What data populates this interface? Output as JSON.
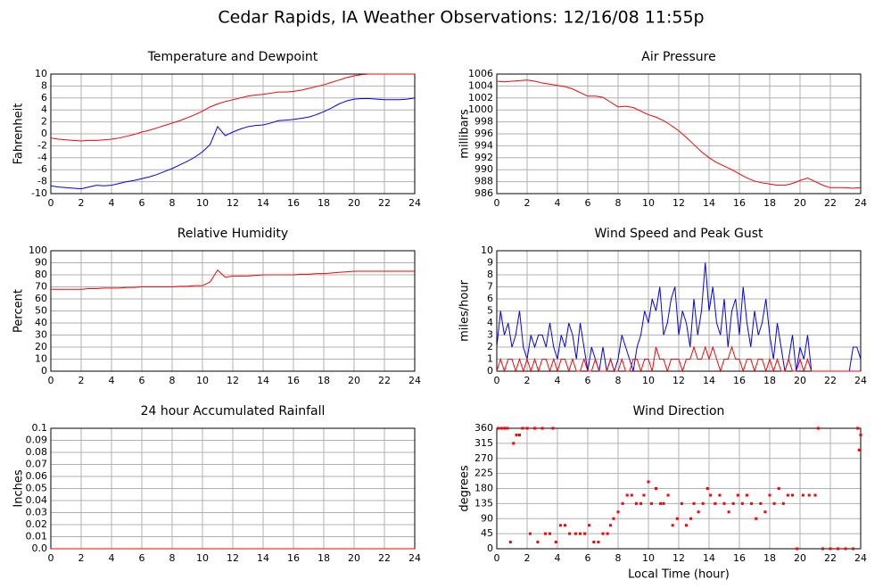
{
  "title": "Cedar Rapids, IA Weather Observations: 12/16/08 11:55p",
  "chart_data": [
    {
      "type": "line",
      "title": "Temperature and Dewpoint",
      "y_label": "Fahrenheit",
      "x": [
        0,
        0.5,
        1,
        1.5,
        2,
        2.5,
        3,
        3.5,
        4,
        4.5,
        5,
        5.5,
        6,
        6.5,
        7,
        7.5,
        8,
        8.5,
        9,
        9.5,
        10,
        10.5,
        11,
        11.5,
        12,
        12.5,
        13,
        13.5,
        14,
        14.5,
        15,
        15.5,
        16,
        16.5,
        17,
        17.5,
        18,
        18.5,
        19,
        19.5,
        20,
        20.5,
        21,
        21.5,
        22,
        22.5,
        23,
        23.5,
        24
      ],
      "series": [
        {
          "color": "#ff0000",
          "values": [
            -0.7,
            -0.9,
            -1.0,
            -1.1,
            -1.2,
            -1.1,
            -1.1,
            -1.0,
            -0.9,
            -0.7,
            -0.4,
            -0.1,
            0.3,
            0.6,
            1.0,
            1.4,
            1.8,
            2.2,
            2.7,
            3.2,
            3.8,
            4.5,
            5.0,
            5.4,
            5.7,
            6.0,
            6.3,
            6.5,
            6.6,
            6.8,
            7.0,
            7.0,
            7.1,
            7.3,
            7.6,
            7.9,
            8.2,
            8.6,
            9.0,
            9.4,
            9.7,
            9.9,
            10,
            10,
            10,
            10,
            10,
            10,
            10
          ]
        },
        {
          "color": "#0000ff",
          "values": [
            -8.7,
            -8.9,
            -9.0,
            -9.1,
            -9.2,
            -8.9,
            -8.6,
            -8.7,
            -8.6,
            -8.3,
            -8.0,
            -7.8,
            -7.5,
            -7.2,
            -6.8,
            -6.3,
            -5.8,
            -5.2,
            -4.6,
            -3.9,
            -3.0,
            -1.8,
            1.2,
            -0.3,
            0.3,
            0.8,
            1.2,
            1.4,
            1.5,
            1.8,
            2.2,
            2.3,
            2.4,
            2.6,
            2.8,
            3.2,
            3.7,
            4.3,
            5.0,
            5.5,
            5.8,
            5.9,
            5.9,
            5.8,
            5.7,
            5.7,
            5.7,
            5.8,
            6.0
          ]
        }
      ],
      "xlim": [
        0,
        24
      ],
      "xticks": [
        0,
        2,
        4,
        6,
        8,
        10,
        12,
        14,
        16,
        18,
        20,
        22,
        24
      ],
      "ylim": [
        -10,
        10
      ],
      "yticks": [
        -10,
        -8,
        -6,
        -4,
        -2,
        0,
        2,
        4,
        6,
        8,
        10
      ],
      "grid": true
    },
    {
      "type": "line",
      "title": "Air Pressure",
      "y_label": "millibars",
      "x": [
        0,
        0.5,
        1,
        1.5,
        2,
        2.5,
        3,
        3.5,
        4,
        4.5,
        5,
        5.5,
        6,
        6.5,
        7,
        7.5,
        8,
        8.5,
        9,
        9.5,
        10,
        10.5,
        11,
        11.5,
        12,
        12.5,
        13,
        13.5,
        14,
        14.5,
        15,
        15.5,
        16,
        16.5,
        17,
        17.5,
        18,
        18.5,
        19,
        19.5,
        20,
        20.5,
        21,
        21.5,
        22,
        22.5,
        23,
        23.5,
        24
      ],
      "series": [
        {
          "color": "#ff0000",
          "values": [
            1004.8,
            1004.7,
            1004.8,
            1004.9,
            1005.0,
            1004.8,
            1004.5,
            1004.3,
            1004.1,
            1003.9,
            1003.5,
            1002.9,
            1002.3,
            1002.3,
            1002.1,
            1001.3,
            1000.5,
            1000.6,
            1000.4,
            999.8,
            999.2,
            998.8,
            998.2,
            997.4,
            996.5,
            995.4,
            994.2,
            993.0,
            992.0,
            991.2,
            990.6,
            990.0,
            989.3,
            988.6,
            988.1,
            987.8,
            987.6,
            987.4,
            987.4,
            987.7,
            988.2,
            988.6,
            988.0,
            987.4,
            987.0,
            987.0,
            987.0,
            986.9,
            987.0
          ]
        }
      ],
      "xlim": [
        0,
        24
      ],
      "xticks": [
        0,
        2,
        4,
        6,
        8,
        10,
        12,
        14,
        16,
        18,
        20,
        22,
        24
      ],
      "ylim": [
        986,
        1006
      ],
      "yticks": [
        986,
        988,
        990,
        992,
        994,
        996,
        998,
        1000,
        1002,
        1004,
        1006
      ],
      "grid": true
    },
    {
      "type": "line",
      "title": "Relative Humidity",
      "y_label": "Percent",
      "x": [
        0,
        0.5,
        1,
        1.5,
        2,
        2.5,
        3,
        3.5,
        4,
        4.5,
        5,
        5.5,
        6,
        6.5,
        7,
        7.5,
        8,
        8.5,
        9,
        9.5,
        10,
        10.5,
        11,
        11.5,
        12,
        12.5,
        13,
        13.5,
        14,
        14.5,
        15,
        15.5,
        16,
        16.5,
        17,
        17.5,
        18,
        18.5,
        19,
        19.5,
        20,
        20.5,
        21,
        21.5,
        22,
        22.5,
        23,
        23.5,
        24
      ],
      "series": [
        {
          "color": "#ff0000",
          "values": [
            68,
            68,
            68,
            68,
            68,
            68.5,
            68.5,
            69,
            69,
            69,
            69.5,
            69.5,
            70,
            70,
            70,
            70,
            70,
            70.5,
            70.5,
            71,
            71,
            74,
            84,
            78,
            79,
            79,
            79,
            79.5,
            80,
            80,
            80,
            80,
            80,
            80.5,
            80.5,
            81,
            81,
            81.5,
            82,
            82.5,
            83,
            83,
            83,
            83,
            83,
            83,
            83,
            83,
            83
          ]
        }
      ],
      "xlim": [
        0,
        24
      ],
      "xticks": [
        0,
        2,
        4,
        6,
        8,
        10,
        12,
        14,
        16,
        18,
        20,
        22,
        24
      ],
      "ylim": [
        0,
        100
      ],
      "yticks": [
        0,
        10,
        20,
        30,
        40,
        50,
        60,
        70,
        80,
        90,
        100
      ],
      "grid": true
    },
    {
      "type": "line",
      "title": "Wind Speed and Peak Gust",
      "y_label": "miles/hour",
      "x": [
        0,
        0.25,
        0.5,
        0.75,
        1,
        1.25,
        1.5,
        1.75,
        2,
        2.25,
        2.5,
        2.75,
        3,
        3.25,
        3.5,
        3.75,
        4,
        4.25,
        4.5,
        4.75,
        5,
        5.25,
        5.5,
        5.75,
        6,
        6.25,
        6.5,
        6.75,
        7,
        7.25,
        7.5,
        7.75,
        8,
        8.25,
        8.5,
        8.75,
        9,
        9.25,
        9.5,
        9.75,
        10,
        10.25,
        10.5,
        10.75,
        11,
        11.25,
        11.5,
        11.75,
        12,
        12.25,
        12.5,
        12.75,
        13,
        13.25,
        13.5,
        13.75,
        14,
        14.25,
        14.5,
        14.75,
        15,
        15.25,
        15.5,
        15.75,
        16,
        16.25,
        16.5,
        16.75,
        17,
        17.25,
        17.5,
        17.75,
        18,
        18.25,
        18.5,
        18.75,
        19,
        19.25,
        19.5,
        19.75,
        20,
        20.25,
        20.5,
        20.75,
        21,
        21.25,
        21.5,
        21.75,
        22,
        22.25,
        22.5,
        22.75,
        23,
        23.25,
        23.5,
        23.75,
        24
      ],
      "series": [
        {
          "color": "#0000ff",
          "values": [
            2,
            5,
            3,
            4,
            2,
            3,
            5,
            2,
            1,
            3,
            2,
            3,
            3,
            2,
            4,
            2,
            1,
            3,
            2,
            4,
            3,
            1,
            4,
            2,
            0,
            2,
            1,
            0,
            2,
            0,
            1,
            0,
            1,
            3,
            2,
            1,
            0,
            2,
            3,
            5,
            4,
            6,
            5,
            7,
            3,
            4,
            6,
            7,
            3,
            5,
            4,
            2,
            6,
            3,
            5,
            9,
            5,
            7,
            4,
            3,
            6,
            2,
            5,
            6,
            3,
            7,
            4,
            2,
            5,
            3,
            4,
            6,
            3,
            1,
            4,
            2,
            0,
            1,
            3,
            0,
            2,
            1,
            3,
            0,
            0,
            0,
            0,
            0,
            0,
            0,
            0,
            0,
            0,
            0,
            2,
            2,
            1
          ]
        },
        {
          "color": "#ff0000",
          "values": [
            0,
            1,
            0,
            1,
            1,
            0,
            1,
            0,
            1,
            0,
            1,
            0,
            1,
            1,
            0,
            1,
            0,
            1,
            1,
            0,
            1,
            0,
            0,
            1,
            0,
            0,
            1,
            0,
            0,
            0,
            1,
            0,
            0,
            1,
            0,
            0,
            1,
            1,
            0,
            1,
            1,
            0,
            2,
            1,
            1,
            0,
            1,
            1,
            1,
            0,
            1,
            1,
            2,
            1,
            1,
            2,
            1,
            2,
            1,
            0,
            1,
            1,
            2,
            1,
            1,
            0,
            1,
            1,
            0,
            1,
            1,
            0,
            1,
            0,
            1,
            0,
            0,
            1,
            0,
            0,
            1,
            0,
            1,
            0,
            0,
            0,
            0,
            0,
            0,
            0,
            0,
            0,
            0,
            0,
            0,
            0,
            0
          ]
        }
      ],
      "xlim": [
        0,
        24
      ],
      "xticks": [
        0,
        2,
        4,
        6,
        8,
        10,
        12,
        14,
        16,
        18,
        20,
        22,
        24
      ],
      "ylim": [
        0,
        10
      ],
      "yticks": [
        0,
        1,
        2,
        3,
        4,
        5,
        6,
        7,
        8,
        9,
        10
      ],
      "grid": true
    },
    {
      "type": "line",
      "title": "24 hour Accumulated Rainfall",
      "y_label": "Inches",
      "x": [
        0,
        24
      ],
      "series": [
        {
          "color": "#ff0000",
          "values": [
            0,
            0
          ]
        }
      ],
      "xlim": [
        0,
        24
      ],
      "xticks": [
        0,
        2,
        4,
        6,
        8,
        10,
        12,
        14,
        16,
        18,
        20,
        22,
        24
      ],
      "ylim": [
        0,
        0.1
      ],
      "yticks": [
        {
          "value": 0,
          "label": "0.0"
        },
        0.01,
        0.02,
        0.03,
        0.04,
        0.05,
        0.06,
        0.07,
        0.08,
        0.09,
        0.1
      ],
      "grid": true
    },
    {
      "type": "scatter",
      "title": "Wind Direction",
      "y_label": "degrees",
      "x_label": "Local Time (hour)",
      "color": "#ff0000",
      "x": [
        0.1,
        0.3,
        0.5,
        0.7,
        0.9,
        1.1,
        1.3,
        1.5,
        1.7,
        2,
        2.2,
        2.5,
        2.7,
        3,
        3.2,
        3.5,
        3.7,
        3.9,
        4.2,
        4.5,
        4.8,
        5.2,
        5.5,
        5.8,
        6.1,
        6.4,
        6.7,
        7,
        7.3,
        7.5,
        7.7,
        8,
        8.3,
        8.6,
        8.9,
        9.2,
        9.5,
        9.7,
        10,
        10.2,
        10.5,
        10.8,
        11,
        11.3,
        11.6,
        11.9,
        12.2,
        12.5,
        12.8,
        13,
        13.3,
        13.6,
        13.9,
        14.1,
        14.4,
        14.7,
        15,
        15.3,
        15.6,
        15.9,
        16.2,
        16.5,
        16.8,
        17.1,
        17.4,
        17.7,
        18,
        18.3,
        18.6,
        18.9,
        19.2,
        19.5,
        19.8,
        20.2,
        20.6,
        21,
        21.2,
        21.5,
        22,
        22.5,
        23,
        23.5,
        23.8,
        23.9,
        24
      ],
      "values": [
        360,
        360,
        360,
        360,
        20,
        315,
        340,
        340,
        360,
        360,
        45,
        360,
        20,
        360,
        45,
        45,
        360,
        20,
        70,
        70,
        45,
        45,
        45,
        45,
        70,
        20,
        20,
        45,
        45,
        70,
        90,
        110,
        135,
        160,
        160,
        135,
        135,
        160,
        200,
        135,
        180,
        135,
        135,
        160,
        70,
        90,
        135,
        70,
        90,
        135,
        110,
        135,
        180,
        160,
        135,
        160,
        135,
        110,
        135,
        160,
        135,
        160,
        135,
        90,
        135,
        110,
        160,
        135,
        180,
        135,
        160,
        160,
        0,
        160,
        160,
        160,
        360,
        0,
        0,
        0,
        0,
        0,
        360,
        295,
        340
      ],
      "xlim": [
        0,
        24
      ],
      "xticks": [
        0,
        2,
        4,
        6,
        8,
        10,
        12,
        14,
        16,
        18,
        20,
        22,
        24
      ],
      "ylim": [
        0,
        360
      ],
      "yticks": [
        0,
        45,
        90,
        135,
        180,
        225,
        270,
        315,
        360
      ],
      "grid": true
    }
  ]
}
